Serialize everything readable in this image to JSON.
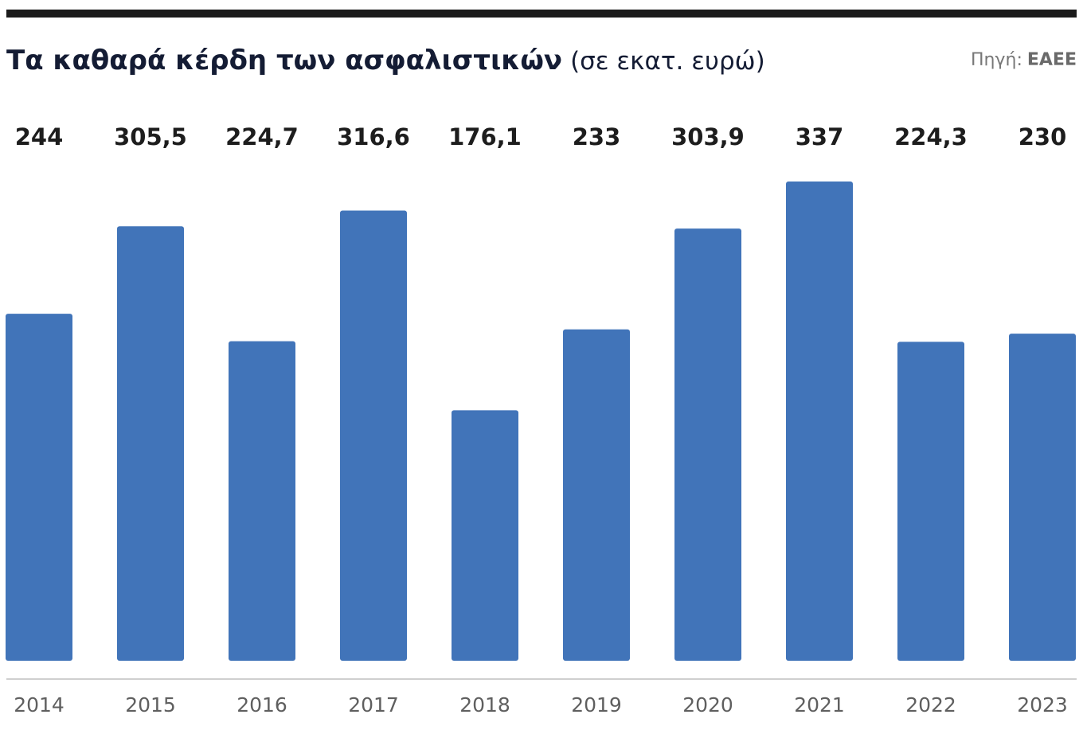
{
  "header": {
    "title": "Τα καθαρά κέρδη των ασφαλιστικών",
    "unit": "(σε εκατ. ευρώ)",
    "source_label": "Πηγή:",
    "source_value": "ΕΑΕΕ"
  },
  "colors": {
    "bar": "#4174b9",
    "value_label": "#1d1d1d",
    "tick_label": "#5f5f5f",
    "baseline": "#cfcfcf",
    "top_rule": "#1b1b1b"
  },
  "chart_data": {
    "type": "bar",
    "title": "Τα καθαρά κέρδη των ασφαλιστικών",
    "subtitle": "(σε εκατ. ευρώ)",
    "xlabel": "",
    "ylabel": "",
    "categories": [
      "2014",
      "2015",
      "2016",
      "2017",
      "2018",
      "2019",
      "2020",
      "2021",
      "2022",
      "2023"
    ],
    "values": [
      244,
      305.5,
      224.7,
      316.6,
      176.1,
      233,
      303.9,
      337,
      224.3,
      230
    ],
    "value_labels": [
      "244",
      "305,5",
      "224,7",
      "316,6",
      "176,1",
      "233",
      "303,9",
      "337",
      "224,3",
      "230"
    ],
    "ylim": [
      0,
      337
    ],
    "grid": false,
    "legend": "none"
  }
}
